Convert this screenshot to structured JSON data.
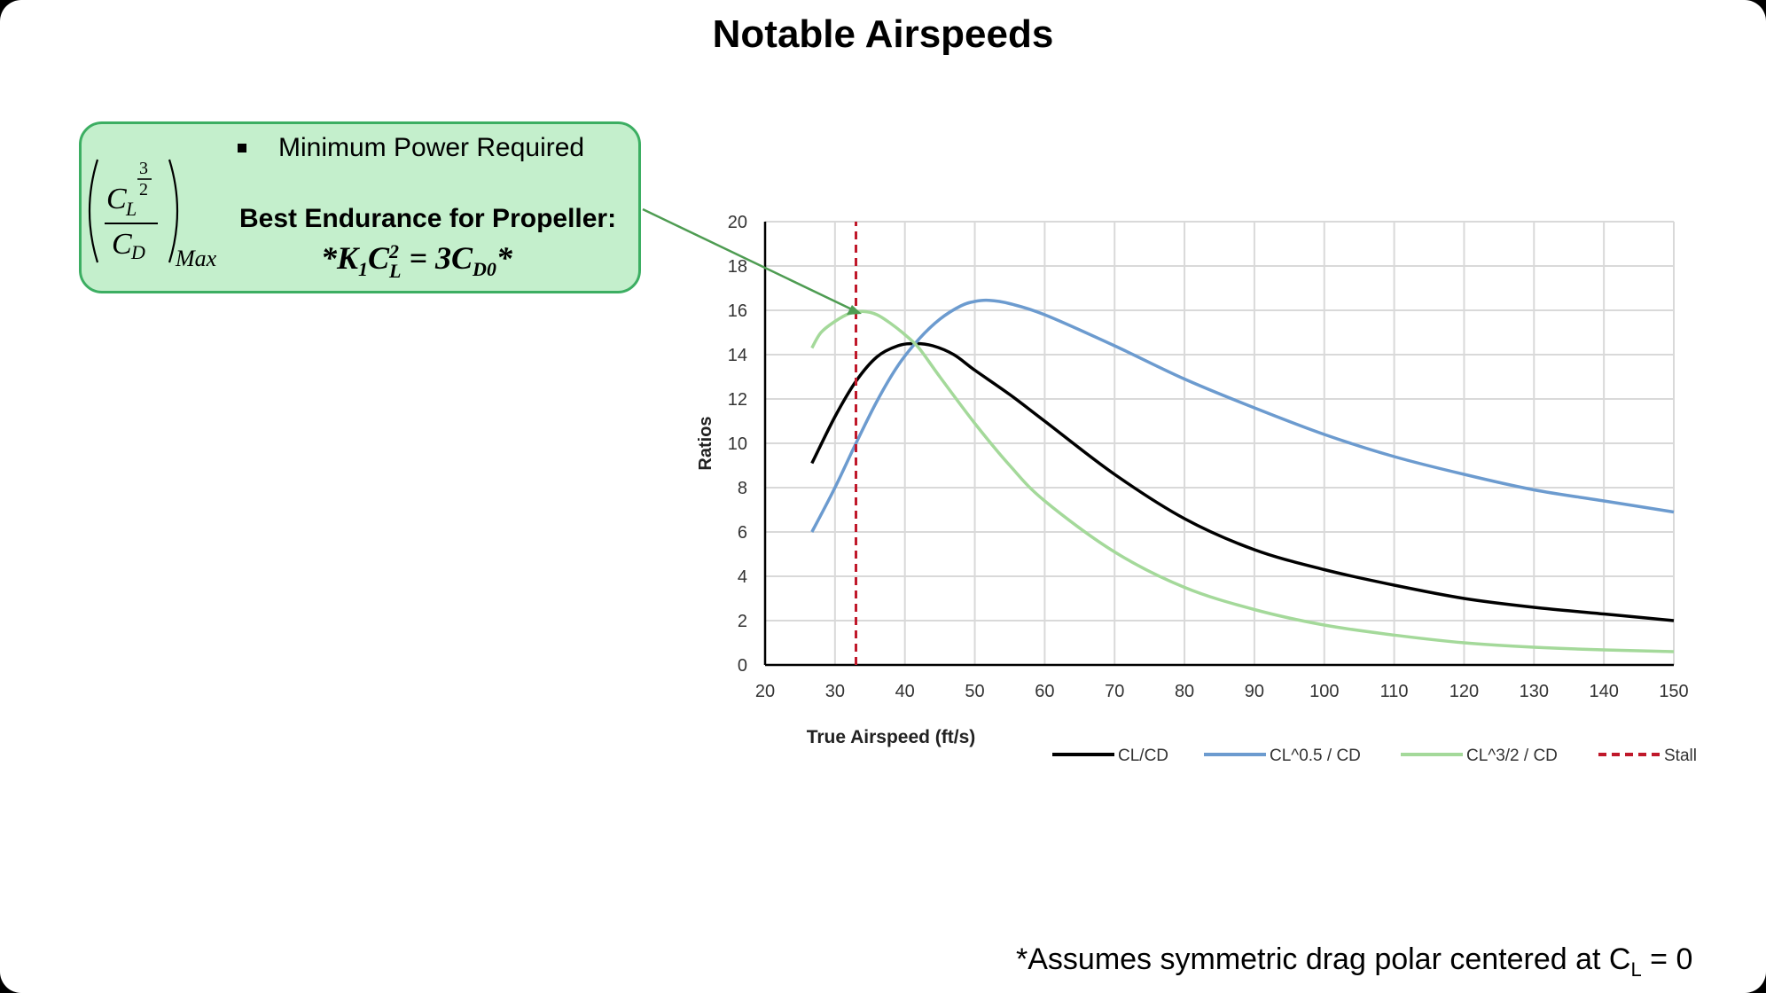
{
  "slide": {
    "title": "Notable Airspeeds",
    "callout": {
      "bullet": "Minimum Power Required",
      "heading": "Best Endurance for Propeller:",
      "equation": "*K1CL2 = 3CD0*",
      "formula_label": "(CL^(3/2)/CD)Max"
    },
    "footnote": {
      "text": "*Assumes symmetric drag polar centered at C",
      "subscript": "L",
      "suffix": " = 0"
    }
  },
  "chart_data": {
    "type": "line",
    "xlabel": "True Airspeed (ft/s)",
    "ylabel": "Ratios",
    "xlim": [
      20,
      150
    ],
    "ylim": [
      0,
      20
    ],
    "xticks": [
      20,
      30,
      40,
      50,
      60,
      70,
      80,
      90,
      100,
      110,
      120,
      130,
      140,
      150
    ],
    "yticks": [
      0,
      2,
      4,
      6,
      8,
      10,
      12,
      14,
      16,
      18,
      20
    ],
    "grid": true,
    "legend_position": "bottom-right",
    "series": [
      {
        "name": "CL/CD",
        "color": "#000000",
        "dash": "solid",
        "x": [
          26.7,
          30,
          33,
          36,
          39,
          41.5,
          44,
          47,
          50,
          55,
          60,
          70,
          80,
          90,
          100,
          110,
          120,
          130,
          140,
          150
        ],
        "y": [
          9.1,
          11.2,
          12.8,
          13.9,
          14.4,
          14.5,
          14.4,
          14.0,
          13.3,
          12.2,
          11.0,
          8.6,
          6.6,
          5.2,
          4.3,
          3.6,
          3.0,
          2.6,
          2.3,
          2.0
        ]
      },
      {
        "name": "CL^0.5 / CD",
        "color": "#6c9bcf",
        "dash": "solid",
        "x": [
          26.7,
          30,
          33,
          36,
          39,
          42,
          45,
          48,
          50,
          52,
          55,
          60,
          70,
          80,
          90,
          100,
          110,
          120,
          130,
          140,
          150
        ],
        "y": [
          6.0,
          8.0,
          10.0,
          11.9,
          13.5,
          14.7,
          15.6,
          16.2,
          16.4,
          16.45,
          16.3,
          15.8,
          14.4,
          12.9,
          11.6,
          10.4,
          9.4,
          8.6,
          7.9,
          7.4,
          6.9
        ]
      },
      {
        "name": "CL^3/2 / CD",
        "color": "#a4d99a",
        "dash": "solid",
        "x": [
          26.7,
          28,
          30,
          32,
          34,
          36,
          38,
          40,
          42,
          45,
          50,
          55,
          60,
          70,
          80,
          90,
          100,
          110,
          120,
          130,
          140,
          150
        ],
        "y": [
          14.3,
          15.0,
          15.5,
          15.85,
          15.95,
          15.8,
          15.4,
          14.9,
          14.3,
          13.0,
          10.9,
          9.0,
          7.4,
          5.1,
          3.5,
          2.5,
          1.8,
          1.35,
          1.0,
          0.8,
          0.68,
          0.6
        ]
      },
      {
        "name": "Stall",
        "color": "#c0182a",
        "dash": "dashed",
        "x": [
          33,
          33
        ],
        "y": [
          0,
          20
        ]
      }
    ]
  }
}
